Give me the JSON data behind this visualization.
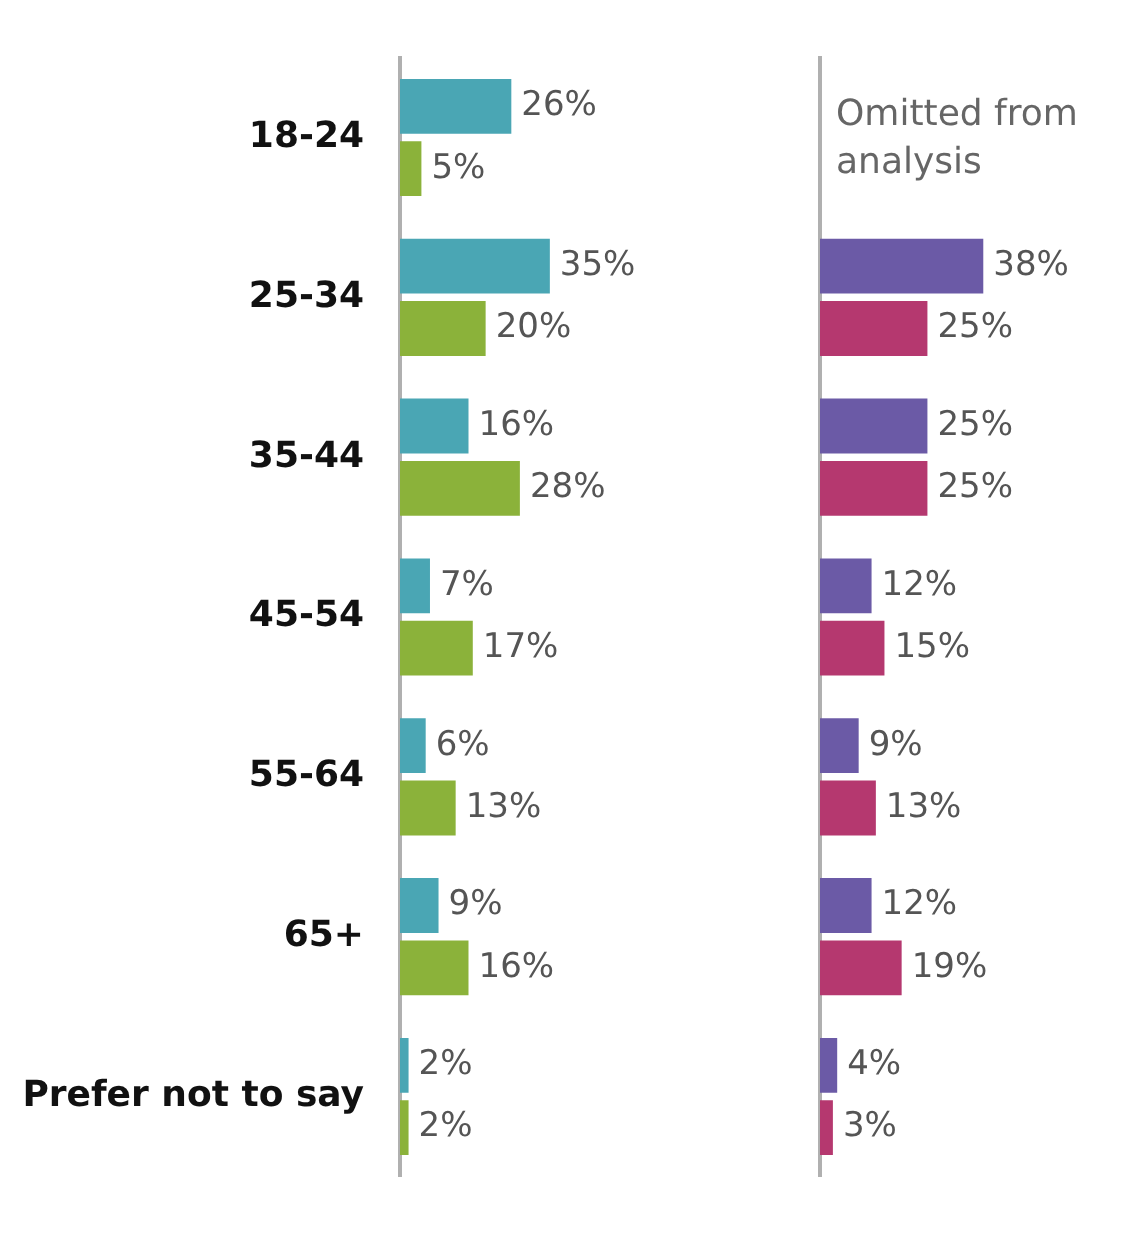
{
  "chart_data": [
    {
      "type": "bar",
      "orientation": "horizontal",
      "categories": [
        "18-24",
        "25-34",
        "35-44",
        "45-54",
        "55-64",
        "65+",
        "Prefer not to say"
      ],
      "series": [
        {
          "color": "#4aa6b4",
          "values": [
            26,
            35,
            16,
            7,
            6,
            9,
            2
          ],
          "value_labels": [
            "26%",
            "35%",
            "16%",
            "7%",
            "6%",
            "9%",
            "2%"
          ]
        },
        {
          "color": "#8bb23a",
          "values": [
            5,
            20,
            28,
            17,
            13,
            16,
            2
          ],
          "value_labels": [
            "5%",
            "20%",
            "28%",
            "17%",
            "13%",
            "16%",
            "2%"
          ]
        }
      ],
      "tick_labels": "y",
      "grid": false,
      "legend": false
    },
    {
      "type": "bar",
      "orientation": "horizontal",
      "categories": [
        null,
        null,
        null,
        null,
        null,
        null,
        null
      ],
      "series": [
        {
          "color": "#6b5aa6",
          "values": [
            null,
            38,
            25,
            12,
            9,
            12,
            4
          ],
          "value_labels": [
            null,
            "38%",
            "25%",
            "12%",
            "9%",
            "12%",
            "4%"
          ]
        },
        {
          "color": "#b5386f",
          "values": [
            null,
            25,
            25,
            15,
            13,
            19,
            3
          ],
          "value_labels": [
            null,
            "25%",
            "25%",
            "15%",
            "13%",
            "19%",
            "3%"
          ]
        }
      ],
      "annotations": [
        "Omitted from analysis"
      ],
      "tick_labels": false,
      "grid": false,
      "legend": false
    }
  ]
}
